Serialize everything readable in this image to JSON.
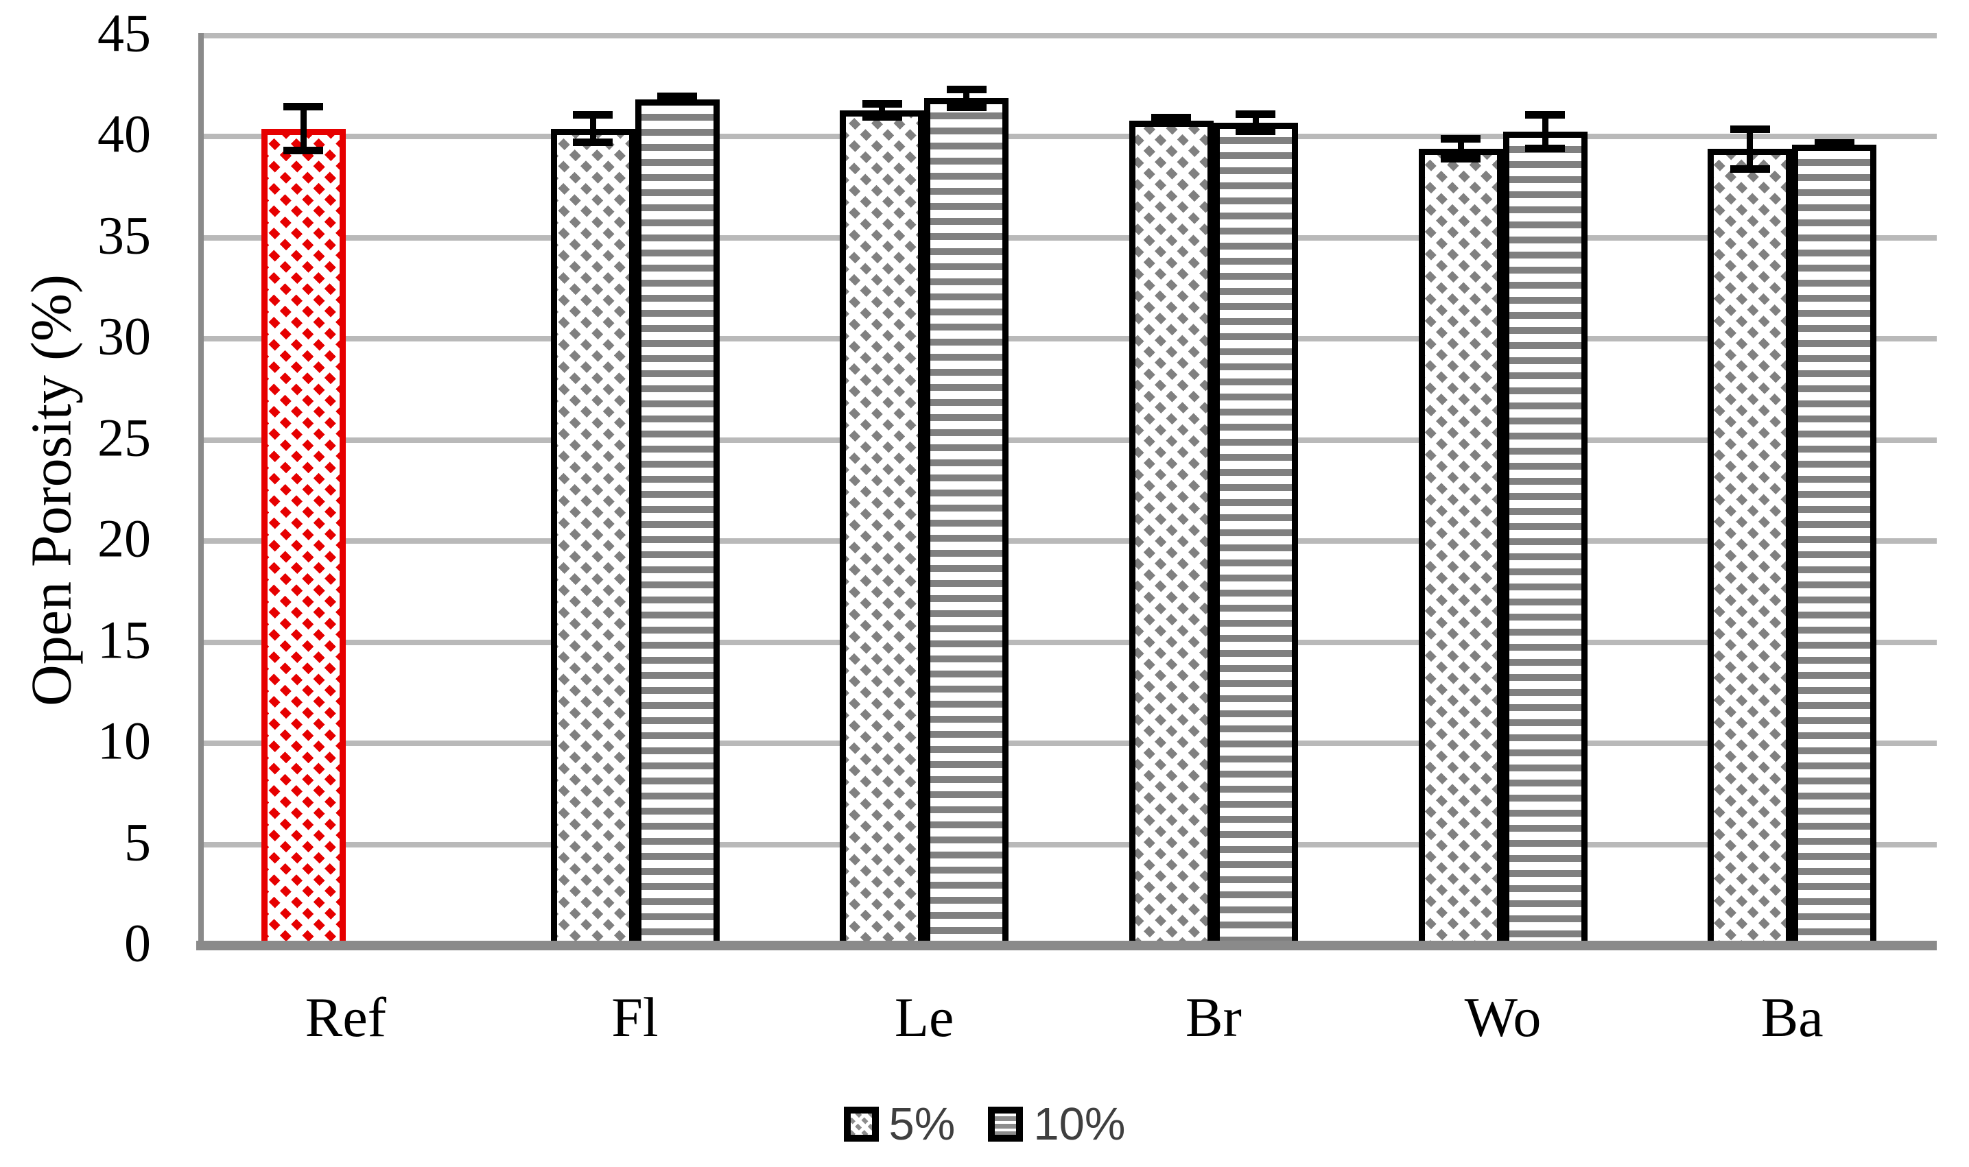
{
  "figure": {
    "background": "#ffffff",
    "axis_line_color": "#8a8a8a",
    "gridline_color": "#b9b9b9",
    "highlight_color": "#e60000",
    "bar_fill_gray": "#808080",
    "legend": {
      "text_color": "#3f3f3f",
      "items": [
        {
          "label": "5%",
          "swatch": "diagonal-hatch-swatch"
        },
        {
          "label": "10%",
          "swatch": "horizontal-lines-swatch"
        }
      ]
    }
  },
  "chart_data": {
    "type": "bar",
    "title": "",
    "xlabel": "",
    "ylabel": "Open Porosity (%)",
    "ylim": [
      0,
      45
    ],
    "ytick_step": 5,
    "yticks": [
      0,
      5,
      10,
      15,
      20,
      25,
      30,
      35,
      40,
      45
    ],
    "grid": "horizontal",
    "legend_position": "bottom-center",
    "categories": [
      "Ref",
      "Fl",
      "Le",
      "Br",
      "Wo",
      "Ba"
    ],
    "series": [
      {
        "name": "5%",
        "pattern": "diagonal-hatch",
        "values": [
          40.4,
          40.4,
          41.3,
          40.8,
          39.4,
          39.4
        ],
        "errors": [
          1.1,
          0.7,
          0.35,
          0.15,
          0.5,
          1.0
        ],
        "border_colors": [
          "#e60000",
          "#000000",
          "#000000",
          "#000000",
          "#000000",
          "#000000"
        ],
        "fill_colors": [
          "#e60000",
          "#808080",
          "#808080",
          "#808080",
          "#808080",
          "#808080"
        ]
      },
      {
        "name": "10%",
        "pattern": "horizontal-lines",
        "values": [
          null,
          41.85,
          41.9,
          40.7,
          40.25,
          39.6
        ],
        "errors": [
          null,
          0.15,
          0.45,
          0.45,
          0.85,
          0.1
        ],
        "border_colors": [
          null,
          "#000000",
          "#000000",
          "#000000",
          "#000000",
          "#000000"
        ],
        "fill_colors": [
          null,
          "#808080",
          "#808080",
          "#808080",
          "#808080",
          "#808080"
        ]
      }
    ],
    "highlighted_category": "Ref"
  }
}
